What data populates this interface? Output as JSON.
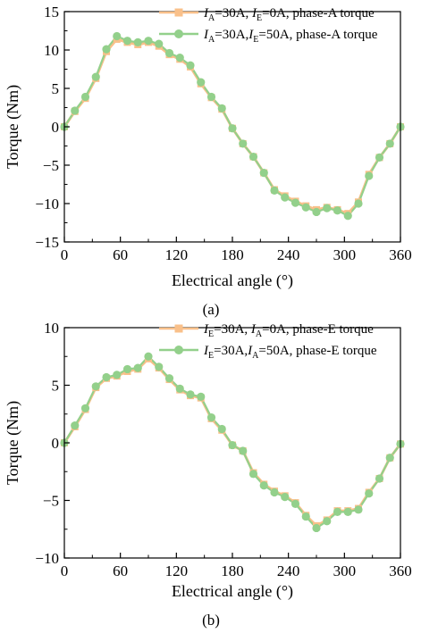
{
  "figure": {
    "colors": {
      "series_a": "#f9c08a",
      "series_b": "#93d08b",
      "axis": "#000000",
      "background": "#ffffff"
    }
  },
  "chart_data": [
    {
      "type": "line",
      "panel_label": "(a)",
      "xlabel": "Electrical angle (°)",
      "ylabel": "Torque (Nm)",
      "xlim": [
        0,
        360
      ],
      "ylim": [
        -15,
        15
      ],
      "xticks": [
        0,
        60,
        120,
        180,
        240,
        300,
        360
      ],
      "yticks": [
        -15,
        -10,
        -5,
        0,
        5,
        10,
        15
      ],
      "xtick_labels": [
        "0",
        "60",
        "120",
        "180",
        "240",
        "300",
        "360"
      ],
      "ytick_labels": [
        "−15",
        "−10",
        "−5",
        "0",
        "5",
        "10",
        "15"
      ],
      "grid": false,
      "legend_position": "top-right",
      "x": [
        0,
        11.25,
        22.5,
        33.75,
        45,
        56.25,
        67.5,
        78.75,
        90,
        101.25,
        112.5,
        123.75,
        135,
        146.25,
        157.5,
        168.75,
        180,
        191.25,
        202.5,
        213.75,
        225,
        236.25,
        247.5,
        258.75,
        270,
        281.25,
        292.5,
        303.75,
        315,
        326.25,
        337.5,
        348.75,
        360
      ],
      "series": [
        {
          "legend": {
            "i1": "I",
            "s1": "A",
            "t1": "=30A, ",
            "i2": "I",
            "s2": "E",
            "t2": "=0A, phase-A torque"
          },
          "marker": "square",
          "values": [
            0,
            2.0,
            3.7,
            6.3,
            9.8,
            11.4,
            11.0,
            10.7,
            11.0,
            10.5,
            9.4,
            8.8,
            7.8,
            5.6,
            3.8,
            2.3,
            -0.2,
            -2.2,
            -3.9,
            -6.0,
            -8.2,
            -9.0,
            -9.7,
            -10.3,
            -10.8,
            -10.5,
            -10.8,
            -11.3,
            -9.8,
            -6.2,
            -4.0,
            -2.2,
            0
          ]
        },
        {
          "legend": {
            "i1": "I",
            "s1": "A",
            "t1": "=30A,",
            "i2": "I",
            "s2": "E",
            "t2": "=50A,  phase-A torque"
          },
          "marker": "circle",
          "values": [
            0,
            2.1,
            3.9,
            6.5,
            10.1,
            11.8,
            11.2,
            11.0,
            11.2,
            10.8,
            9.6,
            9.0,
            8.0,
            5.8,
            3.9,
            2.4,
            -0.2,
            -2.2,
            -3.9,
            -6.0,
            -8.3,
            -9.2,
            -9.9,
            -10.5,
            -11.1,
            -10.6,
            -10.9,
            -11.6,
            -10.0,
            -6.4,
            -4.0,
            -2.2,
            0
          ]
        }
      ]
    },
    {
      "type": "line",
      "panel_label": "(b)",
      "xlabel": "Electrical angle (°)",
      "ylabel": "Torque (Nm)",
      "xlim": [
        0,
        360
      ],
      "ylim": [
        -10,
        10
      ],
      "xticks": [
        0,
        60,
        120,
        180,
        240,
        300,
        360
      ],
      "yticks": [
        -10,
        -5,
        0,
        5,
        10
      ],
      "xtick_labels": [
        "0",
        "60",
        "120",
        "180",
        "240",
        "300",
        "360"
      ],
      "ytick_labels": [
        "−10",
        "−5",
        "0",
        "5",
        "10"
      ],
      "grid": false,
      "legend_position": "top-right",
      "x": [
        0,
        11.25,
        22.5,
        33.75,
        45,
        56.25,
        67.5,
        78.75,
        90,
        101.25,
        112.5,
        123.75,
        135,
        146.25,
        157.5,
        168.75,
        180,
        191.25,
        202.5,
        213.75,
        225,
        236.25,
        247.5,
        258.75,
        270,
        281.25,
        292.5,
        303.75,
        315,
        326.25,
        337.5,
        348.75,
        360
      ],
      "series": [
        {
          "legend": {
            "i1": "I",
            "s1": "E",
            "t1": "=30A, ",
            "i2": "I",
            "s2": "A",
            "t2": "=0A, phase-E torque"
          },
          "marker": "square",
          "values": [
            0,
            1.4,
            2.9,
            4.8,
            5.6,
            5.8,
            6.2,
            6.4,
            7.3,
            6.5,
            5.5,
            4.6,
            4.1,
            3.9,
            2.1,
            1.1,
            -0.2,
            -0.7,
            -2.6,
            -3.6,
            -4.2,
            -4.6,
            -5.2,
            -6.3,
            -7.2,
            -6.7,
            -5.9,
            -5.9,
            -5.7,
            -4.3,
            -3.1,
            -1.3,
            -0.1
          ]
        },
        {
          "legend": {
            "i1": "I",
            "s1": "E",
            "t1": "=30A,",
            "i2": "I",
            "s2": "A",
            "t2": "=50A,  phase-E torque"
          },
          "marker": "circle",
          "values": [
            0,
            1.5,
            3.0,
            4.9,
            5.7,
            5.9,
            6.4,
            6.5,
            7.5,
            6.6,
            5.6,
            4.7,
            4.2,
            4.0,
            2.2,
            1.2,
            -0.2,
            -0.7,
            -2.7,
            -3.7,
            -4.3,
            -4.7,
            -5.3,
            -6.4,
            -7.4,
            -6.8,
            -6.0,
            -6.0,
            -5.8,
            -4.4,
            -3.1,
            -1.3,
            -0.1
          ]
        }
      ]
    }
  ]
}
